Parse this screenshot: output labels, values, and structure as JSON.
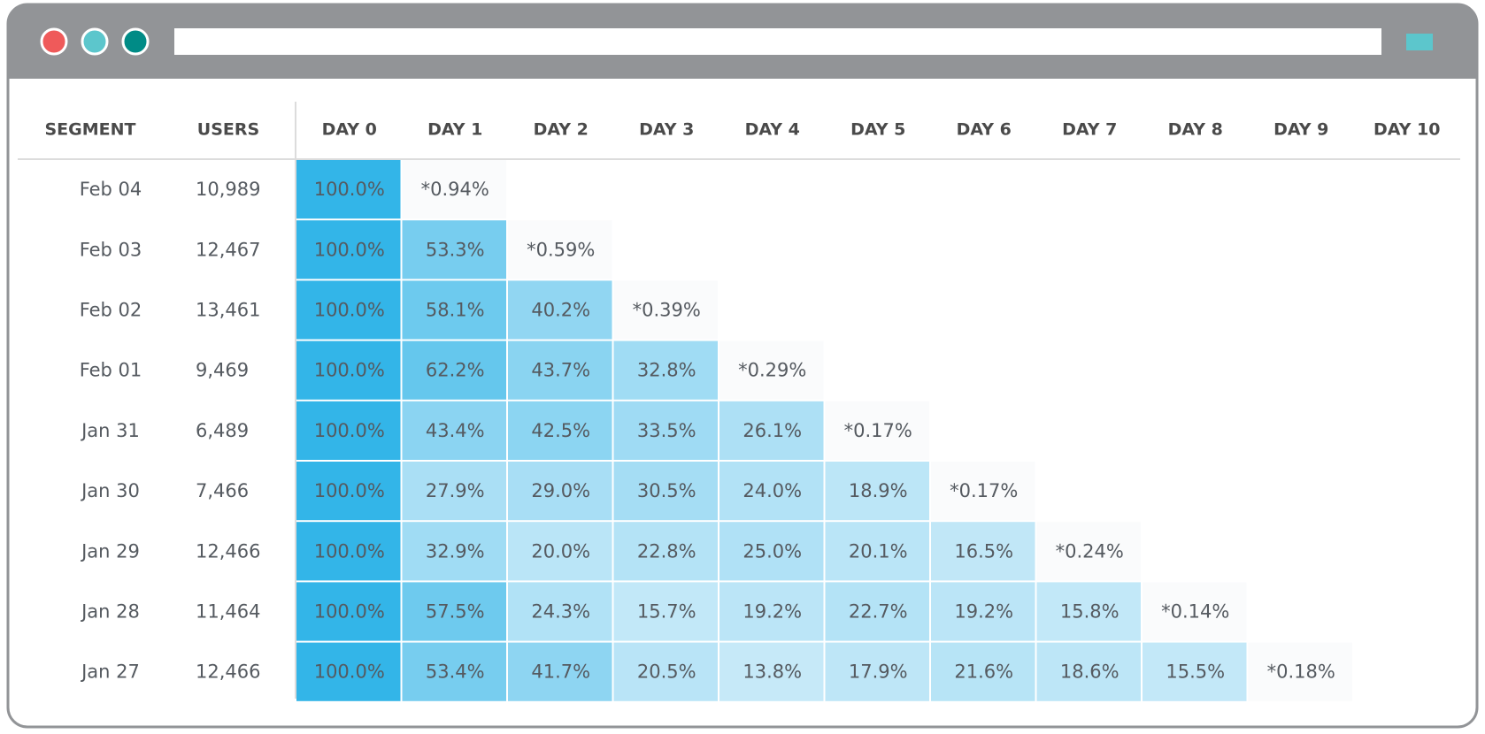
{
  "table": {
    "columns": [
      "SEGMENT",
      "USERS",
      "DAY 0",
      "DAY 1",
      "DAY 2",
      "DAY 3",
      "DAY 4",
      "DAY 5",
      "DAY 6",
      "DAY 7",
      "DAY 8",
      "DAY 9",
      "DAY 10"
    ],
    "rows": [
      {
        "segment": "Feb 04",
        "users": "10,989",
        "cells": [
          "100.0%",
          "*0.94%"
        ]
      },
      {
        "segment": "Feb 03",
        "users": "12,467",
        "cells": [
          "100.0%",
          "53.3%",
          "*0.59%"
        ]
      },
      {
        "segment": "Feb 02",
        "users": "13,461",
        "cells": [
          "100.0%",
          "58.1%",
          "40.2%",
          "*0.39%"
        ]
      },
      {
        "segment": "Feb 01",
        "users": "9,469",
        "cells": [
          "100.0%",
          "62.2%",
          "43.7%",
          "32.8%",
          "*0.29%"
        ]
      },
      {
        "segment": "Jan 31",
        "users": "6,489",
        "cells": [
          "100.0%",
          "43.4%",
          "42.5%",
          "33.5%",
          "26.1%",
          "*0.17%"
        ]
      },
      {
        "segment": "Jan 30",
        "users": "7,466",
        "cells": [
          "100.0%",
          "27.9%",
          "29.0%",
          "30.5%",
          "24.0%",
          "18.9%",
          "*0.17%"
        ]
      },
      {
        "segment": "Jan 29",
        "users": "12,466",
        "cells": [
          "100.0%",
          "32.9%",
          "20.0%",
          "22.8%",
          "25.0%",
          "20.1%",
          "16.5%",
          "*0.24%"
        ]
      },
      {
        "segment": "Jan 28",
        "users": "11,464",
        "cells": [
          "100.0%",
          "57.5%",
          "24.3%",
          "15.7%",
          "19.2%",
          "22.7%",
          "19.2%",
          "15.8%",
          "*0.14%"
        ]
      },
      {
        "segment": "Jan 27",
        "users": "12,466",
        "cells": [
          "100.0%",
          "53.4%",
          "41.7%",
          "20.5%",
          "13.8%",
          "17.9%",
          "21.6%",
          "18.6%",
          "15.5%",
          "*0.18%"
        ]
      }
    ]
  }
}
